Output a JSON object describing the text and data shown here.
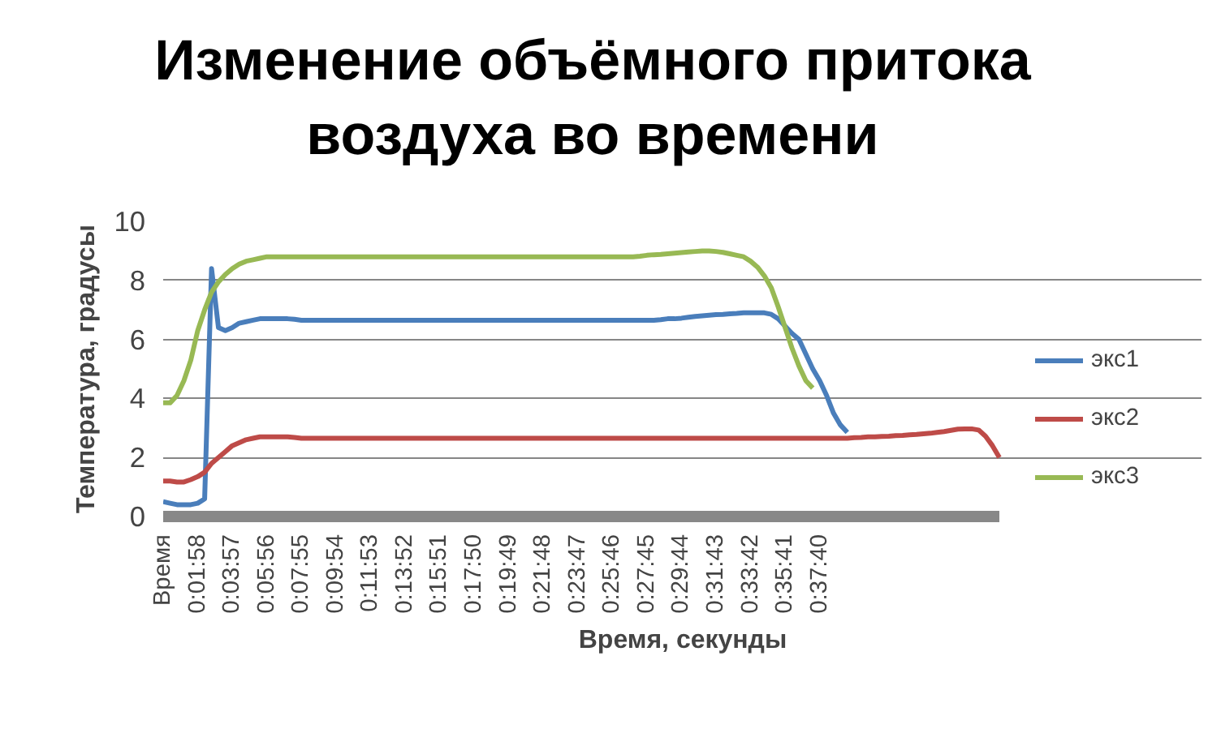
{
  "chart_data": {
    "type": "line",
    "title": "Изменение объёмного притока воздуха во времени",
    "xlabel": "Время, секунды",
    "ylabel": "Температура, градусы",
    "categories": [
      "Время",
      null,
      null,
      null,
      null,
      "0:01:58",
      null,
      null,
      null,
      null,
      "0:03:57",
      null,
      null,
      null,
      null,
      "0:05:56",
      null,
      null,
      null,
      null,
      "0:07:55",
      null,
      null,
      null,
      null,
      "0:09:54",
      null,
      null,
      null,
      null,
      "0:11:53",
      null,
      null,
      null,
      null,
      "0:13:52",
      null,
      null,
      null,
      null,
      "0:15:51",
      null,
      null,
      null,
      null,
      "0:17:50",
      null,
      null,
      null,
      null,
      "0:19:49",
      null,
      null,
      null,
      null,
      "0:21:48",
      null,
      null,
      null,
      null,
      "0:23:47",
      null,
      null,
      null,
      null,
      "0:25:46",
      null,
      null,
      null,
      null,
      "0:27:45",
      null,
      null,
      null,
      null,
      "0:29:44",
      null,
      null,
      null,
      null,
      "0:31:43",
      null,
      null,
      null,
      null,
      "0:33:42",
      null,
      null,
      null,
      null,
      "0:35:41",
      null,
      null,
      null,
      null,
      "0:37:40",
      null,
      null,
      null,
      null,
      null,
      null,
      null,
      null,
      null,
      null,
      null,
      null,
      null,
      null,
      null,
      null,
      null,
      null,
      null,
      null,
      null,
      null,
      null,
      null,
      null,
      null
    ],
    "ylim": [
      0,
      10
    ],
    "yticks": [
      0,
      2,
      4,
      6,
      8,
      10
    ],
    "grid": "y",
    "legend": "right",
    "line_style": "solid",
    "marker": "none",
    "series": [
      {
        "name": "экс1",
        "color": "#4a7ebb",
        "values": [
          0.5,
          0.45,
          0.4,
          0.4,
          0.4,
          0.45,
          0.6,
          8.4,
          6.4,
          6.3,
          6.4,
          6.55,
          6.6,
          6.65,
          6.7,
          6.7,
          6.7,
          6.7,
          6.7,
          6.68,
          6.65,
          6.65,
          6.65,
          6.65,
          6.65,
          6.65,
          6.65,
          6.65,
          6.65,
          6.65,
          6.65,
          6.65,
          6.65,
          6.65,
          6.65,
          6.65,
          6.65,
          6.65,
          6.65,
          6.65,
          6.65,
          6.65,
          6.65,
          6.65,
          6.65,
          6.65,
          6.65,
          6.65,
          6.65,
          6.65,
          6.65,
          6.65,
          6.65,
          6.65,
          6.65,
          6.65,
          6.65,
          6.65,
          6.65,
          6.65,
          6.65,
          6.65,
          6.65,
          6.65,
          6.65,
          6.65,
          6.65,
          6.65,
          6.65,
          6.65,
          6.65,
          6.65,
          6.67,
          6.7,
          6.7,
          6.72,
          6.75,
          6.78,
          6.8,
          6.82,
          6.84,
          6.85,
          6.87,
          6.88,
          6.9,
          6.9,
          6.9,
          6.9,
          6.85,
          6.7,
          6.45,
          6.2,
          6.0,
          5.5,
          5.0,
          4.6,
          4.1,
          3.5,
          3.1,
          2.85,
          null,
          null,
          null,
          null,
          null,
          null,
          null,
          null,
          null,
          null,
          null,
          null,
          null,
          null,
          null,
          null,
          null,
          null,
          null,
          null,
          null,
          null
        ]
      },
      {
        "name": "экс2",
        "color": "#be4b48",
        "values": [
          1.2,
          1.2,
          1.17,
          1.17,
          1.25,
          1.35,
          1.5,
          1.8,
          2.0,
          2.2,
          2.4,
          2.5,
          2.6,
          2.65,
          2.7,
          2.7,
          2.7,
          2.7,
          2.7,
          2.68,
          2.65,
          2.65,
          2.65,
          2.65,
          2.65,
          2.65,
          2.65,
          2.65,
          2.65,
          2.65,
          2.65,
          2.65,
          2.65,
          2.65,
          2.65,
          2.65,
          2.65,
          2.65,
          2.65,
          2.65,
          2.65,
          2.65,
          2.65,
          2.65,
          2.65,
          2.65,
          2.65,
          2.65,
          2.65,
          2.65,
          2.65,
          2.65,
          2.65,
          2.65,
          2.65,
          2.65,
          2.65,
          2.65,
          2.65,
          2.65,
          2.65,
          2.65,
          2.65,
          2.65,
          2.65,
          2.65,
          2.65,
          2.65,
          2.65,
          2.65,
          2.65,
          2.65,
          2.65,
          2.65,
          2.65,
          2.65,
          2.65,
          2.65,
          2.65,
          2.65,
          2.65,
          2.65,
          2.65,
          2.65,
          2.65,
          2.65,
          2.65,
          2.65,
          2.65,
          2.65,
          2.65,
          2.65,
          2.65,
          2.65,
          2.65,
          2.65,
          2.65,
          2.65,
          2.65,
          2.65,
          2.67,
          2.68,
          2.7,
          2.7,
          2.71,
          2.72,
          2.74,
          2.75,
          2.77,
          2.78,
          2.8,
          2.82,
          2.85,
          2.88,
          2.92,
          2.96,
          2.97,
          2.97,
          2.93,
          2.72,
          2.4,
          2.0
        ]
      },
      {
        "name": "экс3",
        "color": "#98b954",
        "values": [
          3.85,
          3.85,
          4.1,
          4.6,
          5.3,
          6.3,
          7.0,
          7.6,
          7.95,
          8.2,
          8.4,
          8.55,
          8.65,
          8.7,
          8.75,
          8.8,
          8.8,
          8.8,
          8.8,
          8.8,
          8.8,
          8.8,
          8.8,
          8.8,
          8.8,
          8.8,
          8.8,
          8.8,
          8.8,
          8.8,
          8.8,
          8.8,
          8.8,
          8.8,
          8.8,
          8.8,
          8.8,
          8.8,
          8.8,
          8.8,
          8.8,
          8.8,
          8.8,
          8.8,
          8.8,
          8.8,
          8.8,
          8.8,
          8.8,
          8.8,
          8.8,
          8.8,
          8.8,
          8.8,
          8.8,
          8.8,
          8.8,
          8.8,
          8.8,
          8.8,
          8.8,
          8.8,
          8.8,
          8.8,
          8.8,
          8.8,
          8.8,
          8.8,
          8.8,
          8.82,
          8.85,
          8.87,
          8.88,
          8.9,
          8.92,
          8.94,
          8.96,
          8.98,
          9.0,
          9.0,
          8.98,
          8.95,
          8.9,
          8.85,
          8.8,
          8.65,
          8.45,
          8.15,
          7.75,
          7.1,
          6.4,
          5.7,
          5.1,
          4.6,
          4.35,
          null,
          null,
          null,
          null,
          null,
          null,
          null,
          null,
          null,
          null,
          null,
          null,
          null,
          null,
          null,
          null,
          null,
          null,
          null,
          null,
          null,
          null,
          null,
          null,
          null,
          null,
          null
        ]
      }
    ]
  }
}
